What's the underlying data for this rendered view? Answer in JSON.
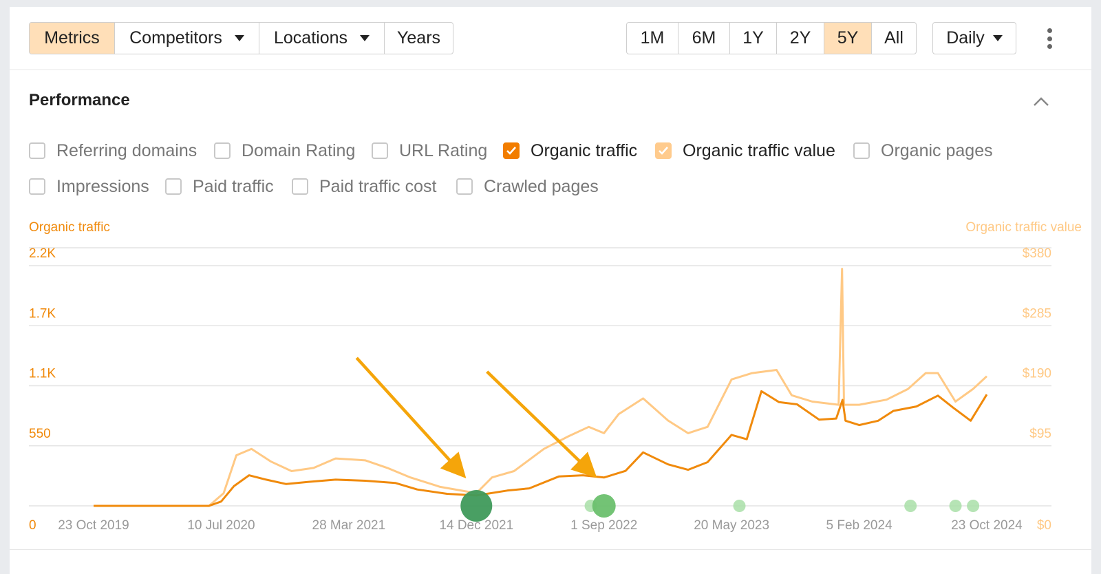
{
  "toolbar": {
    "left_tabs": [
      {
        "label": "Metrics",
        "active": true,
        "dropdown": false
      },
      {
        "label": "Competitors",
        "active": false,
        "dropdown": true
      },
      {
        "label": "Locations",
        "active": false,
        "dropdown": true
      },
      {
        "label": "Years",
        "active": false,
        "dropdown": false
      }
    ],
    "ranges": [
      {
        "label": "1M",
        "active": false
      },
      {
        "label": "6M",
        "active": false
      },
      {
        "label": "1Y",
        "active": false
      },
      {
        "label": "2Y",
        "active": false
      },
      {
        "label": "5Y",
        "active": true
      },
      {
        "label": "All",
        "active": false
      }
    ],
    "interval": "Daily",
    "more_icon": "more-vertical-icon"
  },
  "section": {
    "title": "Performance",
    "collapse_icon": "chevron-up-icon"
  },
  "metrics": [
    {
      "label": "Referring domains",
      "checked": false,
      "color": ""
    },
    {
      "label": "Domain Rating",
      "checked": false,
      "color": ""
    },
    {
      "label": "URL Rating",
      "checked": false,
      "color": ""
    },
    {
      "label": "Organic traffic",
      "checked": true,
      "color": "#f27d00"
    },
    {
      "label": "Organic traffic value",
      "checked": true,
      "color": "#ffcb8d"
    },
    {
      "label": "Organic pages",
      "checked": false,
      "color": ""
    },
    {
      "label": "Impressions",
      "checked": false,
      "color": ""
    },
    {
      "label": "Paid traffic",
      "checked": false,
      "color": ""
    },
    {
      "label": "Paid traffic cost",
      "checked": false,
      "color": ""
    },
    {
      "label": "Crawled pages",
      "checked": false,
      "color": ""
    }
  ],
  "colors": {
    "accent": "#ffdfb8",
    "traffic": "#f08a0c",
    "traffic_value": "#ffc985",
    "arrow": "#f5a50a",
    "update_dark": "#3f9a5b",
    "update_mid": "#6cc06e",
    "update_light": "#a9dfa8"
  },
  "chart_data": {
    "type": "line",
    "ylabel_left": "Organic traffic",
    "ylabel_right": "Organic traffic value",
    "y_ticks_left": [
      "0",
      "550",
      "1.1K",
      "1.7K",
      "2.2K"
    ],
    "y_ticks_right": [
      "$0",
      "$95",
      "$190",
      "$285",
      "$380"
    ],
    "ylim_left": [
      0,
      2200
    ],
    "ylim_right": [
      0,
      380
    ],
    "x_tick_labels": [
      "23 Oct 2019",
      "10 Jul 2020",
      "28 Mar 2021",
      "14 Dec 2021",
      "1 Sep 2022",
      "20 May 2023",
      "5 Feb 2024",
      "23 Oct 2024"
    ],
    "x_ticks": [
      "2019-10-23",
      "2020-07-10",
      "2021-03-28",
      "2021-12-14",
      "2022-09-01",
      "2023-05-20",
      "2024-02-05",
      "2024-10-23"
    ],
    "grid": true,
    "series": [
      {
        "name": "Organic traffic",
        "axis": "left",
        "points": [
          [
            "2019-10-23",
            0
          ],
          [
            "2020-06-15",
            0
          ],
          [
            "2020-07-10",
            40
          ],
          [
            "2020-08-05",
            180
          ],
          [
            "2020-09-05",
            280
          ],
          [
            "2020-10-10",
            240
          ],
          [
            "2020-11-20",
            200
          ],
          [
            "2021-01-05",
            220
          ],
          [
            "2021-03-01",
            240
          ],
          [
            "2021-05-01",
            230
          ],
          [
            "2021-07-01",
            210
          ],
          [
            "2021-08-15",
            150
          ],
          [
            "2021-10-15",
            110
          ],
          [
            "2021-12-14",
            95
          ],
          [
            "2022-02-15",
            140
          ],
          [
            "2022-04-01",
            160
          ],
          [
            "2022-06-01",
            270
          ],
          [
            "2022-07-20",
            280
          ],
          [
            "2022-09-01",
            260
          ],
          [
            "2022-10-15",
            320
          ],
          [
            "2022-11-20",
            490
          ],
          [
            "2023-01-10",
            380
          ],
          [
            "2023-02-20",
            330
          ],
          [
            "2023-04-01",
            400
          ],
          [
            "2023-05-20",
            650
          ],
          [
            "2023-06-20",
            610
          ],
          [
            "2023-07-20",
            1050
          ],
          [
            "2023-08-25",
            950
          ],
          [
            "2023-10-01",
            930
          ],
          [
            "2023-11-15",
            790
          ],
          [
            "2023-12-20",
            800
          ],
          [
            "2024-01-02",
            970
          ],
          [
            "2024-01-08",
            780
          ],
          [
            "2024-02-05",
            740
          ],
          [
            "2024-03-15",
            780
          ],
          [
            "2024-04-15",
            870
          ],
          [
            "2024-06-01",
            910
          ],
          [
            "2024-07-15",
            1010
          ],
          [
            "2024-08-15",
            900
          ],
          [
            "2024-09-20",
            780
          ],
          [
            "2024-10-23",
            1020
          ]
        ]
      },
      {
        "name": "Organic traffic value",
        "axis": "right",
        "points": [
          [
            "2019-10-23",
            0
          ],
          [
            "2020-06-15",
            0
          ],
          [
            "2020-07-15",
            20
          ],
          [
            "2020-08-10",
            80
          ],
          [
            "2020-09-10",
            90
          ],
          [
            "2020-10-20",
            70
          ],
          [
            "2020-12-01",
            55
          ],
          [
            "2021-01-15",
            60
          ],
          [
            "2021-03-01",
            75
          ],
          [
            "2021-05-01",
            72
          ],
          [
            "2021-06-15",
            60
          ],
          [
            "2021-08-01",
            45
          ],
          [
            "2021-10-01",
            30
          ],
          [
            "2021-12-14",
            20
          ],
          [
            "2022-01-15",
            45
          ],
          [
            "2022-03-01",
            55
          ],
          [
            "2022-05-01",
            90
          ],
          [
            "2022-06-20",
            110
          ],
          [
            "2022-08-01",
            125
          ],
          [
            "2022-09-01",
            115
          ],
          [
            "2022-10-01",
            145
          ],
          [
            "2022-11-20",
            170
          ],
          [
            "2023-01-10",
            135
          ],
          [
            "2023-02-20",
            115
          ],
          [
            "2023-04-01",
            125
          ],
          [
            "2023-05-20",
            200
          ],
          [
            "2023-07-01",
            210
          ],
          [
            "2023-08-20",
            215
          ],
          [
            "2023-09-20",
            175
          ],
          [
            "2023-11-01",
            165
          ],
          [
            "2023-12-25",
            160
          ],
          [
            "2024-01-01",
            375
          ],
          [
            "2024-01-05",
            160
          ],
          [
            "2024-02-05",
            160
          ],
          [
            "2024-04-01",
            168
          ],
          [
            "2024-05-15",
            185
          ],
          [
            "2024-06-20",
            210
          ],
          [
            "2024-07-15",
            210
          ],
          [
            "2024-08-20",
            165
          ],
          [
            "2024-09-25",
            185
          ],
          [
            "2024-10-23",
            205
          ]
        ]
      }
    ],
    "annotations": {
      "update_markers": [
        {
          "date": "2021-12-14",
          "size": "large",
          "tone": "dark"
        },
        {
          "date": "2022-08-05",
          "size": "small",
          "tone": "light"
        },
        {
          "date": "2022-09-01",
          "size": "medium",
          "tone": "mid"
        },
        {
          "date": "2023-06-05",
          "size": "small",
          "tone": "light"
        },
        {
          "date": "2024-05-20",
          "size": "small",
          "tone": "light"
        },
        {
          "date": "2024-08-20",
          "size": "small",
          "tone": "light"
        },
        {
          "date": "2024-09-25",
          "size": "small",
          "tone": "light"
        }
      ],
      "arrows": [
        {
          "points_to": "2021-12-14"
        },
        {
          "points_to": "2022-09-01"
        }
      ]
    }
  }
}
